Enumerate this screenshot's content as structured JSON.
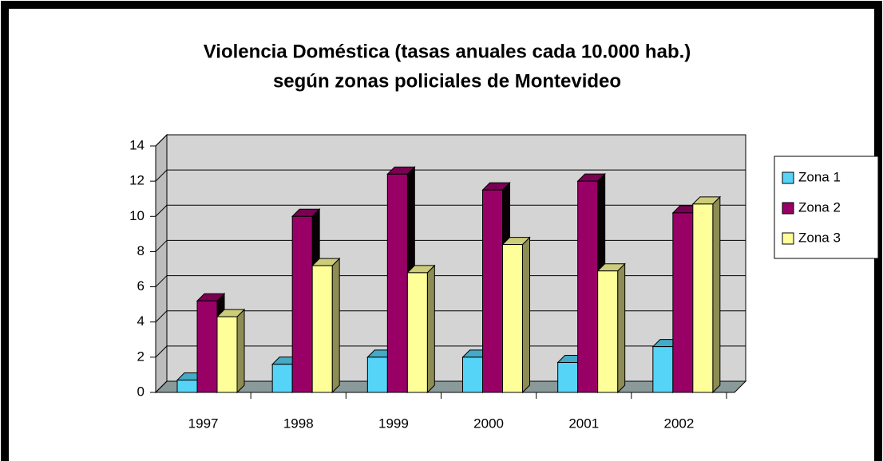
{
  "chart_data": {
    "type": "bar",
    "title": "Violencia Doméstica (tasas anuales cada 10.000 hab.)",
    "subtitle": "según zonas policiales de Montevideo",
    "categories": [
      "1997",
      "1998",
      "1999",
      "2000",
      "2001",
      "2002"
    ],
    "series": [
      {
        "name": "Zona 1",
        "color": "#55d4f7",
        "values": [
          0.7,
          1.6,
          2.0,
          2.0,
          1.7,
          2.6
        ]
      },
      {
        "name": "Zona 2",
        "color": "#990066",
        "values": [
          5.2,
          10.0,
          12.4,
          11.5,
          12.0,
          10.2
        ]
      },
      {
        "name": "Zona 3",
        "color": "#ffff99",
        "values": [
          4.3,
          7.2,
          6.8,
          8.4,
          6.9,
          10.7
        ]
      }
    ],
    "ylim": [
      0,
      14
    ],
    "yticks": [
      0,
      2,
      4,
      6,
      8,
      10,
      12,
      14
    ],
    "grid": true,
    "legend": "right"
  }
}
